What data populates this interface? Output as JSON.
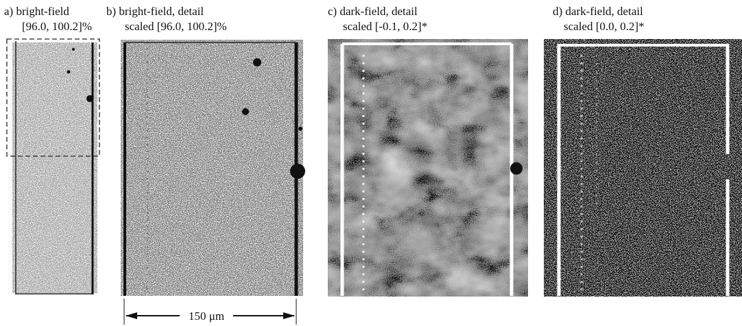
{
  "panels": [
    {
      "label": "a) bright-field",
      "range": "[96.0, 100.2]%"
    },
    {
      "label": "b) bright-field, detail",
      "range": "scaled [96.0, 100.2]%"
    },
    {
      "label": "c) dark-field, detail",
      "range": "scaled [-0.1, 0.2]*"
    },
    {
      "label": "d) dark-field, detail",
      "range": "scaled [0.0, 0.2]*"
    }
  ],
  "scale_bar": "150 μm"
}
